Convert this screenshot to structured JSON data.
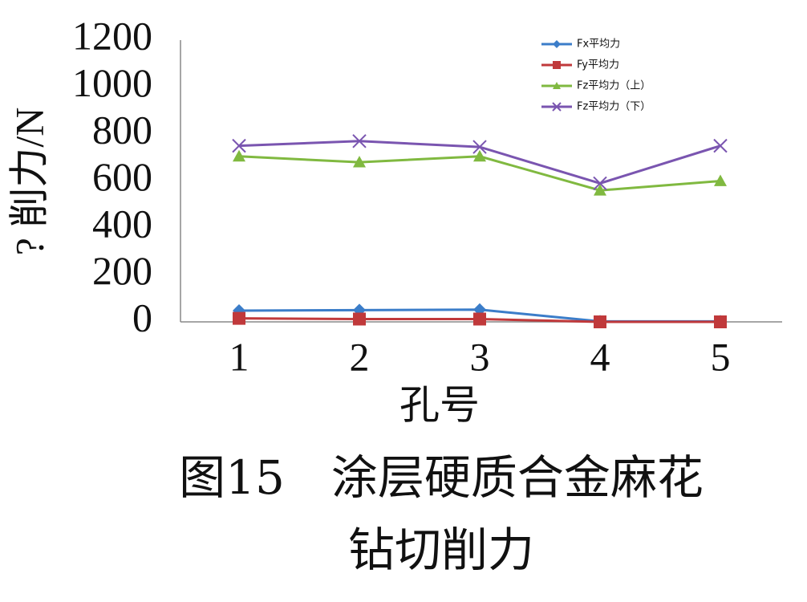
{
  "chart_data": {
    "type": "line",
    "ylabel": "? 削力/N",
    "xlabel": "孔号",
    "caption": [
      "图15　涂层硬质合金麻花",
      "钻切削力"
    ],
    "categories": [
      "1",
      "2",
      "3",
      "4",
      "5"
    ],
    "series": [
      {
        "name": "Fx平均力",
        "color": "#3b7dc9",
        "marker": "diamond",
        "values": [
          48,
          50,
          52,
          2,
          2
        ]
      },
      {
        "name": "Fy平均力",
        "color": "#c0393b",
        "marker": "square",
        "values": [
          15,
          12,
          12,
          0,
          0
        ]
      },
      {
        "name": "Fz平均力（上）",
        "color": "#80b940",
        "marker": "triangle",
        "values": [
          705,
          680,
          705,
          560,
          600
        ]
      },
      {
        "name": "Fz平均力（下）",
        "color": "#7a55b0",
        "marker": "cross",
        "values": [
          750,
          770,
          745,
          590,
          750
        ]
      }
    ],
    "ylim": [
      0,
      1200
    ],
    "yticks": [
      0,
      200,
      400,
      600,
      800,
      1000,
      1200
    ],
    "grid": false,
    "legend": "upper right"
  }
}
